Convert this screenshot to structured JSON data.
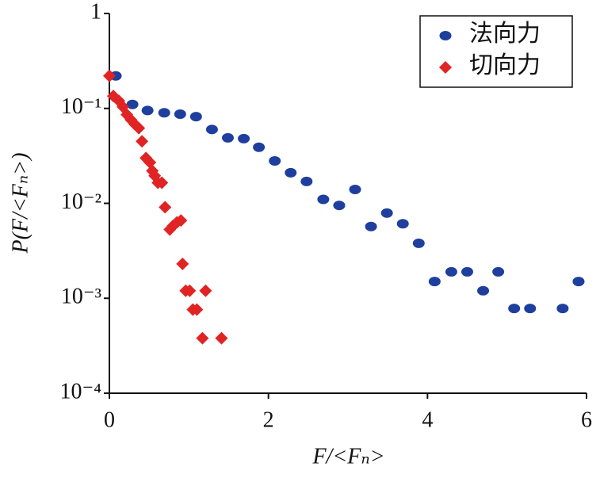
{
  "chart_data": {
    "type": "scatter",
    "yscale": "log",
    "legend": "upper right",
    "xlabel": "F/<Fₙ>",
    "ylabel": "P(F/<Fₙ>)",
    "xlim": [
      0,
      6
    ],
    "xticks": [
      0,
      2,
      4,
      6
    ],
    "ylim": [
      0.0001,
      1
    ],
    "yticks": [
      {
        "value": 0.0001,
        "label": "10⁻⁴"
      },
      {
        "value": 0.001,
        "label": "10⁻³"
      },
      {
        "value": 0.01,
        "label": "10⁻²"
      },
      {
        "value": 0.1,
        "label": "10⁻¹"
      },
      1
    ],
    "series": [
      {
        "name": "法向力",
        "color": "#1f3f9e",
        "marker": "circle",
        "x": [
          0.08,
          0.29,
          0.48,
          0.69,
          0.89,
          1.09,
          1.29,
          1.49,
          1.69,
          1.88,
          2.08,
          2.28,
          2.48,
          2.69,
          2.89,
          3.09,
          3.29,
          3.49,
          3.69,
          3.89,
          4.09,
          4.3,
          4.5,
          4.7,
          4.89,
          5.09,
          5.29,
          5.7,
          5.9
        ],
        "values": [
          0.22,
          0.11,
          0.095,
          0.09,
          0.087,
          0.082,
          0.06,
          0.049,
          0.048,
          0.039,
          0.028,
          0.021,
          0.017,
          0.011,
          0.0095,
          0.014,
          0.0057,
          0.0079,
          0.0061,
          0.0038,
          0.0015,
          0.0019,
          0.0019,
          0.0012,
          0.0019,
          0.00078,
          0.00078,
          0.00078,
          0.0015
        ]
      },
      {
        "name": "切向力",
        "color": "#e02424",
        "marker": "diamond",
        "x": [
          0,
          0.05,
          0.12,
          0.17,
          0.22,
          0.27,
          0.32,
          0.37,
          0.41,
          0.46,
          0.51,
          0.54,
          0.57,
          0.61,
          0.66,
          0.7,
          0.76,
          0.8,
          0.85,
          0.9,
          0.92,
          0.96,
          1.01,
          1.05,
          1.1,
          1.21,
          1.17,
          1.41
        ],
        "values": [
          0.22,
          0.135,
          0.12,
          0.104,
          0.086,
          0.076,
          0.068,
          0.062,
          0.045,
          0.03,
          0.027,
          0.022,
          0.0195,
          0.0165,
          0.0165,
          0.0091,
          0.0053,
          0.0058,
          0.0063,
          0.0066,
          0.0023,
          0.0012,
          0.0012,
          0.00076,
          0.00076,
          0.0012,
          0.00038,
          0.00038
        ]
      }
    ]
  }
}
